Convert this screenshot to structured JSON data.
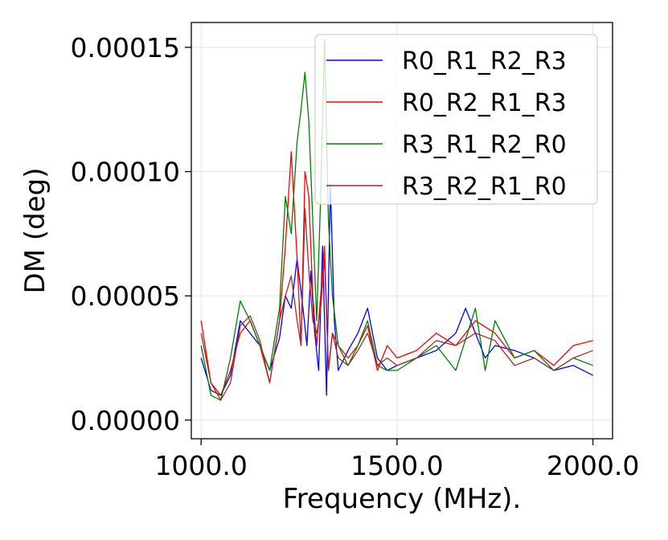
{
  "chart_data": {
    "type": "line",
    "title": "",
    "xlabel": "Frequency (MHz).",
    "ylabel": "DM (deg)",
    "xlim": [
      975,
      2050
    ],
    "ylim": [
      -7.5e-06,
      0.00016
    ],
    "x_ticks": [
      1000,
      1500,
      2000
    ],
    "x_tick_labels": [
      "1000.0",
      "1500.0",
      "2000.0"
    ],
    "y_ticks": [
      0,
      5e-05,
      0.0001,
      0.00015
    ],
    "y_tick_labels": [
      "0.00000",
      "0.00005",
      "0.00010",
      "0.00015"
    ],
    "grid": true,
    "legend_position": "top-right",
    "series": [
      {
        "name": "R0_R1_R2_R3",
        "color": "#0000ff",
        "x": [
          1000,
          1025,
          1050,
          1075,
          1100,
          1125,
          1150,
          1175,
          1200,
          1215,
          1230,
          1245,
          1260,
          1270,
          1280,
          1290,
          1300,
          1310,
          1320,
          1330,
          1340,
          1350,
          1375,
          1400,
          1425,
          1450,
          1475,
          1500,
          1550,
          1600,
          1650,
          1675,
          1700,
          1725,
          1750,
          1800,
          1850,
          1900,
          1950,
          2000
        ],
        "values": [
          2.5e-05,
          1.2e-05,
          1e-05,
          1.8e-05,
          4e-05,
          3.5e-05,
          3e-05,
          2e-05,
          3.3e-05,
          5e-05,
          4.5e-05,
          6.5e-05,
          4.5e-05,
          3e-05,
          6e-05,
          3.5e-05,
          2e-05,
          7e-05,
          1e-05,
          9.5e-05,
          4e-05,
          2e-05,
          2.8e-05,
          3.5e-05,
          4.5e-05,
          2.5e-05,
          2e-05,
          2.2e-05,
          2.5e-05,
          2.8e-05,
          3.5e-05,
          4.5e-05,
          3.5e-05,
          2.5e-05,
          3e-05,
          2.8e-05,
          2.5e-05,
          2e-05,
          2.2e-05,
          1.8e-05
        ]
      },
      {
        "name": "R0_R2_R1_R3",
        "color": "#ff0000",
        "x": [
          1000,
          1025,
          1050,
          1075,
          1100,
          1125,
          1150,
          1175,
          1200,
          1215,
          1230,
          1245,
          1255,
          1265,
          1275,
          1285,
          1295,
          1305,
          1315,
          1325,
          1335,
          1350,
          1375,
          1400,
          1425,
          1450,
          1475,
          1500,
          1550,
          1600,
          1650,
          1700,
          1750,
          1800,
          1850,
          1900,
          1950,
          2000
        ],
        "values": [
          4e-05,
          1.5e-05,
          1e-05,
          2e-05,
          3.5e-05,
          4e-05,
          3e-05,
          1.5e-05,
          4e-05,
          7e-05,
          0.000108,
          6.5e-05,
          3e-05,
          0.0001,
          9e-05,
          5e-05,
          3e-05,
          5e-05,
          7e-05,
          2e-05,
          3.5e-05,
          3e-05,
          2.5e-05,
          3e-05,
          3.8e-05,
          2e-05,
          3e-05,
          2.5e-05,
          2.8e-05,
          3.5e-05,
          3e-05,
          4e-05,
          3.5e-05,
          2.5e-05,
          2.8e-05,
          2.2e-05,
          3e-05,
          3.2e-05
        ]
      },
      {
        "name": "R3_R1_R2_R0",
        "color": "#008000",
        "x": [
          1000,
          1025,
          1050,
          1075,
          1100,
          1125,
          1150,
          1175,
          1200,
          1215,
          1230,
          1245,
          1255,
          1265,
          1275,
          1285,
          1295,
          1305,
          1315,
          1325,
          1335,
          1350,
          1375,
          1400,
          1425,
          1450,
          1475,
          1500,
          1550,
          1600,
          1650,
          1700,
          1725,
          1750,
          1800,
          1850,
          1900,
          1950,
          2000
        ],
        "values": [
          3e-05,
          1e-05,
          8e-06,
          2.5e-05,
          4.8e-05,
          4e-05,
          3e-05,
          2e-05,
          4.5e-05,
          9e-05,
          7.5e-05,
          0.000112,
          0.000125,
          0.00014,
          0.00012,
          8e-05,
          4e-05,
          9e-05,
          0.000153,
          8e-05,
          5e-05,
          3e-05,
          2.2e-05,
          3e-05,
          4e-05,
          2.2e-05,
          2e-05,
          2e-05,
          2.5e-05,
          3e-05,
          2e-05,
          4.5e-05,
          2e-05,
          4e-05,
          2.5e-05,
          2.8e-05,
          2e-05,
          2.5e-05,
          2.2e-05
        ]
      },
      {
        "name": "R3_R2_R1_R0",
        "color": "#a52a2a",
        "x": [
          1000,
          1025,
          1050,
          1075,
          1100,
          1125,
          1150,
          1175,
          1200,
          1215,
          1230,
          1245,
          1255,
          1265,
          1275,
          1285,
          1295,
          1305,
          1315,
          1325,
          1335,
          1350,
          1375,
          1400,
          1425,
          1450,
          1475,
          1500,
          1550,
          1600,
          1650,
          1700,
          1750,
          1800,
          1850,
          1900,
          1950,
          2000
        ],
        "values": [
          3.5e-05,
          1.5e-05,
          8e-06,
          1.5e-05,
          3.8e-05,
          4.2e-05,
          3.2e-05,
          1.5e-05,
          4e-05,
          5e-05,
          5.8e-05,
          4e-05,
          3e-05,
          8.5e-05,
          6e-05,
          4e-05,
          3.5e-05,
          4.5e-05,
          6.5e-05,
          2e-05,
          3.5e-05,
          2.5e-05,
          2.2e-05,
          2.8e-05,
          3.5e-05,
          2.2e-05,
          2.5e-05,
          2.2e-05,
          2.5e-05,
          3.2e-05,
          3e-05,
          3.5e-05,
          3.2e-05,
          2.2e-05,
          2.5e-05,
          2e-05,
          2.5e-05,
          2.8e-05
        ]
      }
    ]
  }
}
